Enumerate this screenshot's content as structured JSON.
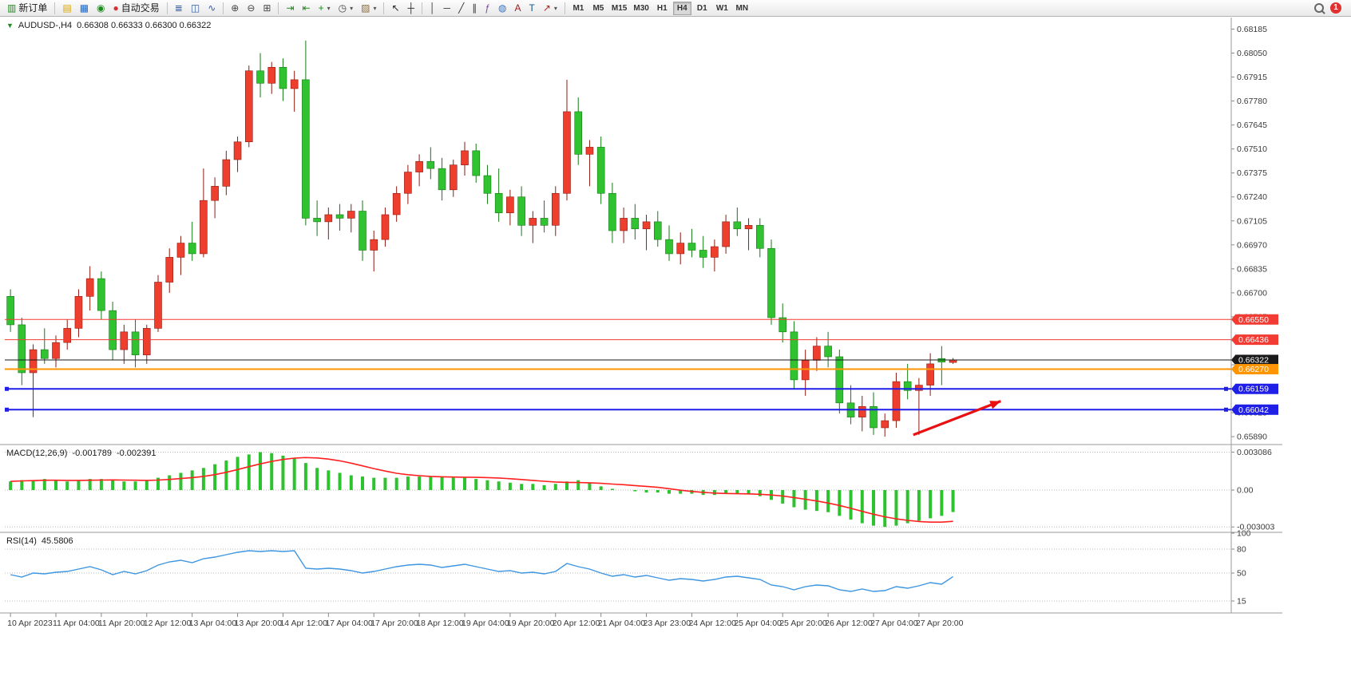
{
  "toolbar": {
    "items": [
      {
        "type": "button",
        "name": "new-order-button",
        "icon": "new-order-icon",
        "glyph": "▥",
        "glyph_color": "#1f8a1f",
        "label": "新订单"
      },
      {
        "type": "sep"
      },
      {
        "type": "button",
        "name": "profiles-button",
        "icon": "profiles-icon",
        "glyph": "▤",
        "glyph_color": "#d9a400"
      },
      {
        "type": "button",
        "name": "market-watch-button",
        "icon": "market-watch-icon",
        "glyph": "▦",
        "glyph_color": "#1663c7"
      },
      {
        "type": "button",
        "name": "data-window-button",
        "icon": "data-window-icon",
        "glyph": "◉",
        "glyph_color": "#1f8a1f"
      },
      {
        "type": "button",
        "name": "algo-trading-button",
        "icon": "algo-trading-icon",
        "glyph": "●",
        "glyph_color": "#d63031",
        "label": "自动交易"
      },
      {
        "type": "sep"
      },
      {
        "type": "button",
        "name": "bars-chart-button",
        "icon": "bar-chart-icon",
        "glyph": "≣",
        "glyph_color": "#355c9b"
      },
      {
        "type": "button",
        "name": "candlestick-chart-button",
        "icon": "candlestick-icon",
        "glyph": "◫",
        "glyph_color": "#355c9b"
      },
      {
        "type": "button",
        "name": "line-chart-button",
        "icon": "line-chart-icon",
        "glyph": "∿",
        "glyph_color": "#355c9b"
      },
      {
        "type": "sep"
      },
      {
        "type": "button",
        "name": "zoom-in-button",
        "icon": "zoom-in-icon",
        "glyph": "⊕",
        "glyph_color": "#444444"
      },
      {
        "type": "button",
        "name": "zoom-out-button",
        "icon": "zoom-out-icon",
        "glyph": "⊖",
        "glyph_color": "#444444"
      },
      {
        "type": "button",
        "name": "tile-windows-button",
        "icon": "tile-windows-icon",
        "glyph": "⊞",
        "glyph_color": "#444444"
      },
      {
        "type": "sep"
      },
      {
        "type": "button",
        "name": "auto-scroll-button",
        "icon": "auto-scroll-icon",
        "glyph": "⇥",
        "glyph_color": "#1f8a1f"
      },
      {
        "type": "button",
        "name": "chart-shift-button",
        "icon": "chart-shift-icon",
        "glyph": "⇤",
        "glyph_color": "#1f8a1f"
      },
      {
        "type": "button",
        "name": "indicators-button",
        "icon": "indicators-icon",
        "glyph": "+",
        "glyph_color": "#1f8a1f",
        "caret": true
      },
      {
        "type": "button",
        "name": "periods-button",
        "icon": "clock-icon",
        "glyph": "◷",
        "glyph_color": "#444444",
        "caret": true
      },
      {
        "type": "button",
        "name": "templates-button",
        "icon": "template-icon",
        "glyph": "▨",
        "glyph_color": "#8a6d3b",
        "caret": true
      },
      {
        "type": "sep"
      },
      {
        "type": "button",
        "name": "cursor-button",
        "icon": "cursor-icon",
        "glyph": "↖",
        "glyph_color": "#222222"
      },
      {
        "type": "button",
        "name": "crosshair-button",
        "icon": "crosshair-icon",
        "glyph": "┼",
        "glyph_color": "#222222"
      },
      {
        "type": "sep"
      },
      {
        "type": "button",
        "name": "vertical-line-button",
        "icon": "vertical-line-icon",
        "glyph": "│",
        "glyph_color": "#333333"
      },
      {
        "type": "button",
        "name": "horizontal-line-button",
        "icon": "horizontal-line-icon",
        "glyph": "─",
        "glyph_color": "#333333"
      },
      {
        "type": "button",
        "name": "trendline-button",
        "icon": "trendline-icon",
        "glyph": "╱",
        "glyph_color": "#333333"
      },
      {
        "type": "button",
        "name": "channel-button",
        "icon": "channel-icon",
        "glyph": "∥",
        "glyph_color": "#333333"
      },
      {
        "type": "button",
        "name": "fibonacci-button",
        "icon": "fibonacci-icon",
        "glyph": "ƒ",
        "glyph_color": "#7a4aa0"
      },
      {
        "type": "button",
        "name": "shapes-button",
        "icon": "shapes-icon",
        "glyph": "◍",
        "glyph_color": "#3f6fb5"
      },
      {
        "type": "button",
        "name": "text-button",
        "icon": "text-icon",
        "glyph": "A",
        "glyph_color": "#9a1b1b"
      },
      {
        "type": "button",
        "name": "text-label-button",
        "icon": "text-label-icon",
        "glyph": "T",
        "glyph_color": "#13568a"
      },
      {
        "type": "button",
        "name": "arrows-tool-button",
        "icon": "arrow-tool-icon",
        "glyph": "↗",
        "glyph_color": "#b02020",
        "caret": true
      },
      {
        "type": "sep"
      }
    ],
    "timeframes": [
      "M1",
      "M5",
      "M15",
      "M30",
      "H1",
      "H4",
      "D1",
      "W1",
      "MN"
    ],
    "active_timeframe": "H4",
    "search_badge": "1"
  },
  "chart_data": {
    "type": "candlestick",
    "symbol": "AUDUSD",
    "timeframe": "H4",
    "title": "AUDUSD-,H4",
    "ohlc_text": "0.66308 0.66333 0.66300 0.66322",
    "ohlc_current": {
      "open": "0.66308",
      "high": "0.66333",
      "low": "0.66300",
      "close": "0.66322"
    },
    "price_range": [
      0.6585,
      0.6825
    ],
    "price_ticks": [
      "0.68185",
      "0.68050",
      "0.67915",
      "0.67780",
      "0.67645",
      "0.67510",
      "0.67375",
      "0.67240",
      "0.67105",
      "0.66970",
      "0.66835",
      "0.66700",
      "0.66565",
      "0.66430",
      "0.66295",
      "0.66160",
      "0.66025",
      "0.65890"
    ],
    "candles": [
      [
        0.6668,
        0.6672,
        0.6648,
        0.6652
      ],
      [
        0.6652,
        0.6656,
        0.6618,
        0.6625
      ],
      [
        0.6625,
        0.6641,
        0.66,
        0.6638
      ],
      [
        0.6638,
        0.665,
        0.663,
        0.6633
      ],
      [
        0.6633,
        0.6646,
        0.6628,
        0.6642
      ],
      [
        0.6642,
        0.6655,
        0.6638,
        0.665
      ],
      [
        0.665,
        0.6672,
        0.6645,
        0.6668
      ],
      [
        0.6668,
        0.6685,
        0.666,
        0.6678
      ],
      [
        0.6678,
        0.6682,
        0.6655,
        0.666
      ],
      [
        0.666,
        0.6665,
        0.6632,
        0.6638
      ],
      [
        0.6638,
        0.6652,
        0.663,
        0.6648
      ],
      [
        0.6648,
        0.6655,
        0.6628,
        0.6635
      ],
      [
        0.6635,
        0.6652,
        0.663,
        0.665
      ],
      [
        0.665,
        0.668,
        0.6648,
        0.6676
      ],
      [
        0.6676,
        0.6695,
        0.667,
        0.669
      ],
      [
        0.669,
        0.6702,
        0.668,
        0.6698
      ],
      [
        0.6698,
        0.671,
        0.6688,
        0.6692
      ],
      [
        0.6692,
        0.674,
        0.669,
        0.6722
      ],
      [
        0.6722,
        0.6735,
        0.6712,
        0.673
      ],
      [
        0.673,
        0.675,
        0.6725,
        0.6745
      ],
      [
        0.6745,
        0.6758,
        0.6738,
        0.6755
      ],
      [
        0.6755,
        0.6798,
        0.6752,
        0.6795
      ],
      [
        0.6795,
        0.6805,
        0.678,
        0.6788
      ],
      [
        0.6788,
        0.68,
        0.6782,
        0.6797
      ],
      [
        0.6797,
        0.6802,
        0.6778,
        0.6785
      ],
      [
        0.6785,
        0.6795,
        0.6772,
        0.679
      ],
      [
        0.679,
        0.6812,
        0.6708,
        0.6712
      ],
      [
        0.6712,
        0.6722,
        0.6702,
        0.671
      ],
      [
        0.671,
        0.6718,
        0.67,
        0.6714
      ],
      [
        0.6714,
        0.672,
        0.6705,
        0.6712
      ],
      [
        0.6712,
        0.672,
        0.6704,
        0.6716
      ],
      [
        0.6716,
        0.6722,
        0.6688,
        0.6694
      ],
      [
        0.6694,
        0.6705,
        0.6682,
        0.67
      ],
      [
        0.67,
        0.6718,
        0.6696,
        0.6714
      ],
      [
        0.6714,
        0.673,
        0.671,
        0.6726
      ],
      [
        0.6726,
        0.6742,
        0.672,
        0.6738
      ],
      [
        0.6738,
        0.6748,
        0.673,
        0.6744
      ],
      [
        0.6744,
        0.6752,
        0.6734,
        0.674
      ],
      [
        0.674,
        0.6746,
        0.6722,
        0.6728
      ],
      [
        0.6728,
        0.6745,
        0.6724,
        0.6742
      ],
      [
        0.6742,
        0.6755,
        0.6736,
        0.675
      ],
      [
        0.675,
        0.6754,
        0.6732,
        0.6736
      ],
      [
        0.6736,
        0.6742,
        0.672,
        0.6726
      ],
      [
        0.6726,
        0.674,
        0.671,
        0.6715
      ],
      [
        0.6715,
        0.6728,
        0.6708,
        0.6724
      ],
      [
        0.6724,
        0.673,
        0.6702,
        0.6708
      ],
      [
        0.6708,
        0.6716,
        0.6698,
        0.6712
      ],
      [
        0.6712,
        0.6722,
        0.6704,
        0.6708
      ],
      [
        0.6708,
        0.673,
        0.6702,
        0.6726
      ],
      [
        0.6726,
        0.679,
        0.6722,
        0.6772
      ],
      [
        0.6772,
        0.678,
        0.6742,
        0.6748
      ],
      [
        0.6748,
        0.6756,
        0.673,
        0.6752
      ],
      [
        0.6752,
        0.6758,
        0.672,
        0.6726
      ],
      [
        0.6726,
        0.6732,
        0.6698,
        0.6705
      ],
      [
        0.6705,
        0.6718,
        0.6698,
        0.6712
      ],
      [
        0.6712,
        0.672,
        0.67,
        0.6706
      ],
      [
        0.6706,
        0.6714,
        0.6694,
        0.671
      ],
      [
        0.671,
        0.6716,
        0.6696,
        0.67
      ],
      [
        0.67,
        0.6708,
        0.6688,
        0.6692
      ],
      [
        0.6692,
        0.6704,
        0.6686,
        0.6698
      ],
      [
        0.6698,
        0.6706,
        0.669,
        0.6694
      ],
      [
        0.6694,
        0.6702,
        0.6684,
        0.669
      ],
      [
        0.669,
        0.67,
        0.6682,
        0.6696
      ],
      [
        0.6696,
        0.6714,
        0.6692,
        0.671
      ],
      [
        0.671,
        0.6718,
        0.6702,
        0.6706
      ],
      [
        0.6706,
        0.6712,
        0.6694,
        0.6708
      ],
      [
        0.6708,
        0.6712,
        0.669,
        0.6695
      ],
      [
        0.6695,
        0.67,
        0.6652,
        0.6656
      ],
      [
        0.6656,
        0.6664,
        0.6642,
        0.6648
      ],
      [
        0.6648,
        0.6654,
        0.6616,
        0.6621
      ],
      [
        0.6621,
        0.6638,
        0.6612,
        0.6632
      ],
      [
        0.6632,
        0.6645,
        0.6626,
        0.664
      ],
      [
        0.664,
        0.6648,
        0.6628,
        0.6634
      ],
      [
        0.6634,
        0.6638,
        0.6602,
        0.6608
      ],
      [
        0.6608,
        0.6618,
        0.6596,
        0.66
      ],
      [
        0.66,
        0.6612,
        0.6592,
        0.6606
      ],
      [
        0.6606,
        0.6614,
        0.659,
        0.6594
      ],
      [
        0.6594,
        0.6602,
        0.6589,
        0.6598
      ],
      [
        0.6598,
        0.6625,
        0.6594,
        0.662
      ],
      [
        0.662,
        0.663,
        0.661,
        0.6615
      ],
      [
        0.6615,
        0.6622,
        0.659,
        0.6618
      ],
      [
        0.6618,
        0.6636,
        0.6612,
        0.663
      ],
      [
        0.6633,
        0.664,
        0.6618,
        0.6631
      ],
      [
        0.66308,
        0.66333,
        0.663,
        0.66322
      ]
    ],
    "time_labels": [
      {
        "i": 0,
        "t": "10 Apr 2023"
      },
      {
        "i": 4,
        "t": "11 Apr 04:00"
      },
      {
        "i": 8,
        "t": "11 Apr 20:00"
      },
      {
        "i": 12,
        "t": "12 Apr 12:00"
      },
      {
        "i": 16,
        "t": "13 Apr 04:00"
      },
      {
        "i": 20,
        "t": "13 Apr 20:00"
      },
      {
        "i": 24,
        "t": "14 Apr 12:00"
      },
      {
        "i": 28,
        "t": "17 Apr 04:00"
      },
      {
        "i": 32,
        "t": "17 Apr 20:00"
      },
      {
        "i": 36,
        "t": "18 Apr 12:00"
      },
      {
        "i": 40,
        "t": "19 Apr 04:00"
      },
      {
        "i": 44,
        "t": "19 Apr 20:00"
      },
      {
        "i": 48,
        "t": "20 Apr 12:00"
      },
      {
        "i": 52,
        "t": "21 Apr 04:00"
      },
      {
        "i": 56,
        "t": "23 Apr 23:00"
      },
      {
        "i": 60,
        "t": "24 Apr 12:00"
      },
      {
        "i": 64,
        "t": "25 Apr 04:00"
      },
      {
        "i": 68,
        "t": "25 Apr 20:00"
      },
      {
        "i": 72,
        "t": "26 Apr 12:00"
      },
      {
        "i": 76,
        "t": "27 Apr 04:00"
      },
      {
        "i": 80,
        "t": "27 Apr 20:00"
      }
    ],
    "levels": [
      {
        "price": 0.6655,
        "label": "0.66550",
        "color": "#f23b32",
        "width": 1,
        "handles": false
      },
      {
        "price": 0.66436,
        "label": "0.66436",
        "color": "#f23b32",
        "width": 1,
        "handles": false
      },
      {
        "price": 0.66322,
        "label": "0.66322",
        "color": "#1a1a1a",
        "width": 1,
        "handles": false,
        "is_current": true
      },
      {
        "price": 0.6627,
        "label": "0.66270",
        "color": "#ff9500",
        "width": 2,
        "handles": false
      },
      {
        "price": 0.66159,
        "label": "0.66159",
        "color": "#1f1fe8",
        "width": 2,
        "handles": true
      },
      {
        "price": 0.66042,
        "label": "0.66042",
        "color": "#1f1fe8",
        "width": 2,
        "handles": true
      }
    ],
    "indicators": {
      "macd": {
        "title": "MACD(12,26,9)",
        "value1": "-0.001789",
        "value2": "-0.002391",
        "scale_labels": [
          "0.003086",
          "0.00",
          "-0.003003"
        ],
        "histogram": [
          0.0007,
          0.0008,
          0.0008,
          0.0009,
          0.0008,
          0.0007,
          0.0008,
          0.0009,
          0.0009,
          0.0008,
          0.0007,
          0.0007,
          0.0008,
          0.001,
          0.0012,
          0.0014,
          0.0016,
          0.0018,
          0.0021,
          0.0024,
          0.0027,
          0.0029,
          0.003086,
          0.003,
          0.0028,
          0.0026,
          0.0022,
          0.0018,
          0.0016,
          0.0014,
          0.0012,
          0.0011,
          0.001,
          0.001,
          0.001,
          0.0011,
          0.0011,
          0.0011,
          0.0011,
          0.001,
          0.001,
          0.0009,
          0.0008,
          0.0007,
          0.0006,
          0.0005,
          0.0005,
          0.0004,
          0.0005,
          0.0007,
          0.0008,
          0.0006,
          0.0003,
          0.0001,
          0,
          -0.0001,
          -0.0002,
          -0.0002,
          -0.0003,
          -0.0003,
          -0.0003,
          -0.0004,
          -0.0004,
          -0.0003,
          -0.0003,
          -0.0003,
          -0.0005,
          -0.0008,
          -0.0011,
          -0.0014,
          -0.0016,
          -0.0017,
          -0.0018,
          -0.0021,
          -0.0024,
          -0.0027,
          -0.0029,
          -0.003003,
          -0.0029,
          -0.0027,
          -0.0025,
          -0.0023,
          -0.0021,
          -0.001789
        ]
      },
      "rsi": {
        "title": "RSI(14)",
        "value": "45.5806",
        "levels": [
          80,
          50,
          15
        ],
        "scale_labels": [
          "100",
          "80",
          "50",
          "15"
        ],
        "values": [
          48,
          45,
          50,
          49,
          51,
          52,
          55,
          58,
          54,
          48,
          52,
          49,
          53,
          60,
          64,
          66,
          63,
          68,
          70,
          73,
          76,
          78,
          77,
          78,
          77,
          78,
          56,
          55,
          56,
          55,
          53,
          50,
          52,
          55,
          58,
          60,
          61,
          60,
          57,
          59,
          61,
          58,
          55,
          52,
          53,
          50,
          51,
          49,
          52,
          62,
          58,
          55,
          50,
          46,
          48,
          45,
          47,
          44,
          41,
          43,
          42,
          40,
          42,
          45,
          46,
          44,
          42,
          35,
          33,
          29,
          33,
          35,
          34,
          29,
          27,
          30,
          27,
          28,
          33,
          31,
          34,
          38,
          36,
          45.58
        ]
      }
    },
    "arrow": {
      "from_i": 79.5,
      "from_price": 0.659,
      "to_i": 87.2,
      "to_price": 0.6609,
      "color": "#e81010"
    },
    "colors": {
      "up": "#ed3e2e",
      "up_border": "#8f1a10",
      "down": "#30c230",
      "down_border": "#157a15",
      "macd_bar": "#2ec22e",
      "macd_signal": "#ff2020",
      "rsi_line": "#3e96e0",
      "axis_text": "#3a3a3a"
    }
  }
}
